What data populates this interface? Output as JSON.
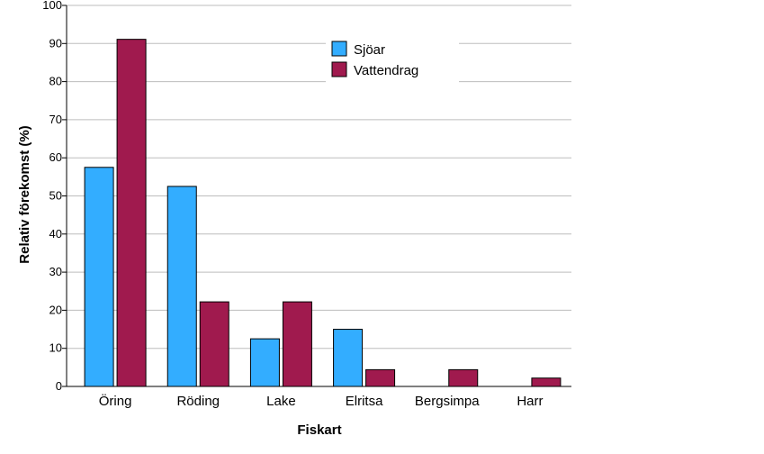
{
  "chart_data": {
    "type": "bar",
    "xlabel": "Fiskart",
    "ylabel": "Relativ förekomst (%)",
    "ylim": [
      0,
      100
    ],
    "y_ticks": [
      0,
      10,
      20,
      30,
      40,
      50,
      60,
      70,
      80,
      90,
      100
    ],
    "grid": true,
    "legend_position": "top-right",
    "categories": [
      "Öring",
      "Röding",
      "Lake",
      "Elritsa",
      "Bergsimpa",
      "Harr"
    ],
    "series": [
      {
        "name": "Sjöar",
        "color": "#33adff",
        "values": [
          57.5,
          52.5,
          12.5,
          15.0,
          0,
          0
        ]
      },
      {
        "name": "Vattendrag",
        "color": "#a01a4e",
        "values": [
          91.1,
          22.2,
          22.2,
          4.4,
          4.4,
          2.2
        ]
      }
    ]
  }
}
